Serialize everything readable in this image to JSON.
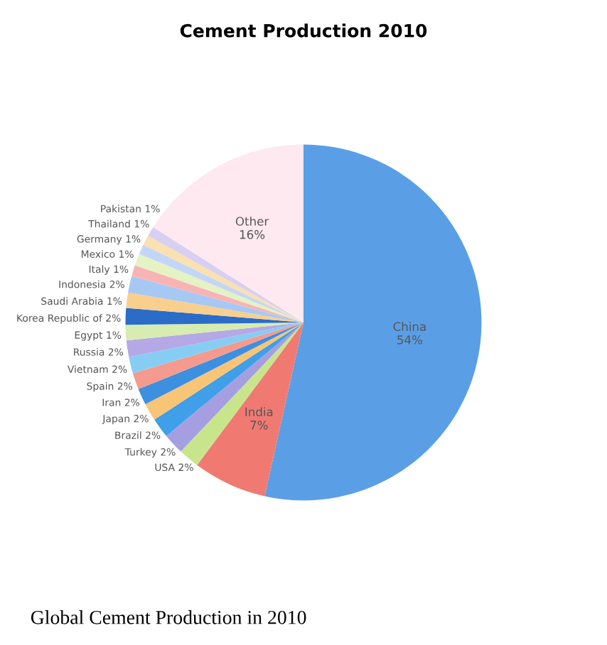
{
  "chart_data": {
    "type": "pie",
    "title": "Cement Production 2010",
    "categories": [
      "China",
      "India",
      "USA",
      "Turkey",
      "Brazil",
      "Japan",
      "Iran",
      "Spain",
      "Vietnam",
      "Russia",
      "Egypt",
      "Korea Republic of",
      "Saudi Arabia",
      "Indonesia",
      "Italy",
      "Mexico",
      "Germany",
      "Thailand",
      "Pakistan",
      "Other"
    ],
    "values": [
      53.5,
      6.7,
      1.9,
      1.9,
      1.8,
      1.6,
      1.5,
      1.5,
      1.5,
      1.5,
      1.4,
      1.5,
      1.4,
      1.5,
      1.0,
      1.1,
      0.9,
      0.9,
      0.9,
      16
    ],
    "value_labels": [
      "54%",
      "7%",
      "2%",
      "2%",
      "2%",
      "2%",
      "2%",
      "2%",
      "2%",
      "2%",
      "1%",
      "2%",
      "1%",
      "2%",
      "1%",
      "1%",
      "1%",
      "1%",
      "1%",
      "16%"
    ],
    "colors": [
      "#5a9fe6",
      "#f07a72",
      "#c9e58c",
      "#a59ee0",
      "#3f9fe8",
      "#f8c476",
      "#3d8fe0",
      "#f49a8e",
      "#86cdf4",
      "#b4a8e6",
      "#d6ecb0",
      "#2a6cc8",
      "#f9cf8e",
      "#a8c8f4",
      "#f8b4b4",
      "#e4f2c4",
      "#c4d6f8",
      "#fbe0b0",
      "#d8d0f2",
      "#fde9ef"
    ],
    "annotations": [
      "Global Cement Production in 2010"
    ]
  }
}
